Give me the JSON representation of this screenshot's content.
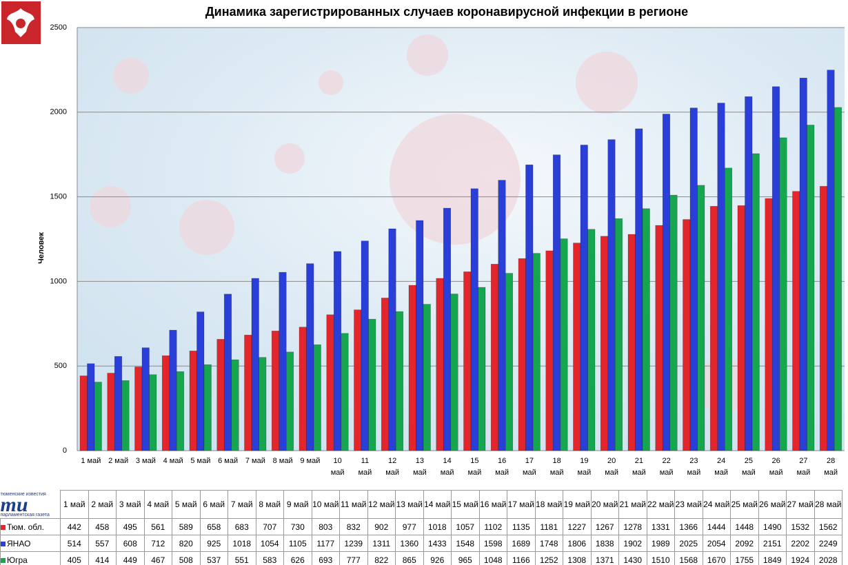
{
  "logo": {
    "top": "тюменские известия",
    "mark": "ти",
    "bottom": "парламентская газета"
  },
  "chart_data": {
    "type": "bar",
    "title": "Динамика зарегистрированных случаев коронавирусной инфекции  в регионе",
    "ylabel": "Человек",
    "categories": [
      "1 май",
      "2 май",
      "3 май",
      "4 май",
      "5 май",
      "6 май",
      "7 май",
      "8 май",
      "9 май",
      "10 май",
      "11 май",
      "12 май",
      "13 май",
      "14 май",
      "15 май",
      "16 май",
      "17 май",
      "18 май",
      "19 май",
      "20 май",
      "21 май",
      "22 май",
      "23 май",
      "24 май",
      "25 май",
      "26 май",
      "27 май",
      "28 май"
    ],
    "series": [
      {
        "name": "Тюм. обл.",
        "color": "#e3262b",
        "values": [
          442,
          458,
          495,
          561,
          589,
          658,
          683,
          707,
          730,
          803,
          832,
          902,
          977,
          1018,
          1057,
          1102,
          1135,
          1181,
          1227,
          1267,
          1278,
          1331,
          1366,
          1444,
          1448,
          1490,
          1532,
          1562
        ]
      },
      {
        "name": "ЯНАО",
        "color": "#2a3fd8",
        "values": [
          514,
          557,
          608,
          712,
          820,
          925,
          1018,
          1054,
          1105,
          1177,
          1239,
          1311,
          1360,
          1433,
          1548,
          1598,
          1689,
          1748,
          1806,
          1838,
          1902,
          1989,
          2025,
          2054,
          2092,
          2151,
          2202,
          2249
        ]
      },
      {
        "name": "Югра",
        "color": "#17a650",
        "values": [
          405,
          414,
          449,
          467,
          508,
          537,
          551,
          583,
          626,
          693,
          777,
          822,
          865,
          926,
          965,
          1048,
          1166,
          1252,
          1308,
          1371,
          1430,
          1510,
          1568,
          1670,
          1755,
          1849,
          1924,
          2028
        ]
      }
    ],
    "ylim": [
      0,
      2500
    ],
    "yticks": [
      0,
      500,
      1000,
      1500,
      2000,
      2500
    ],
    "grid": true
  }
}
